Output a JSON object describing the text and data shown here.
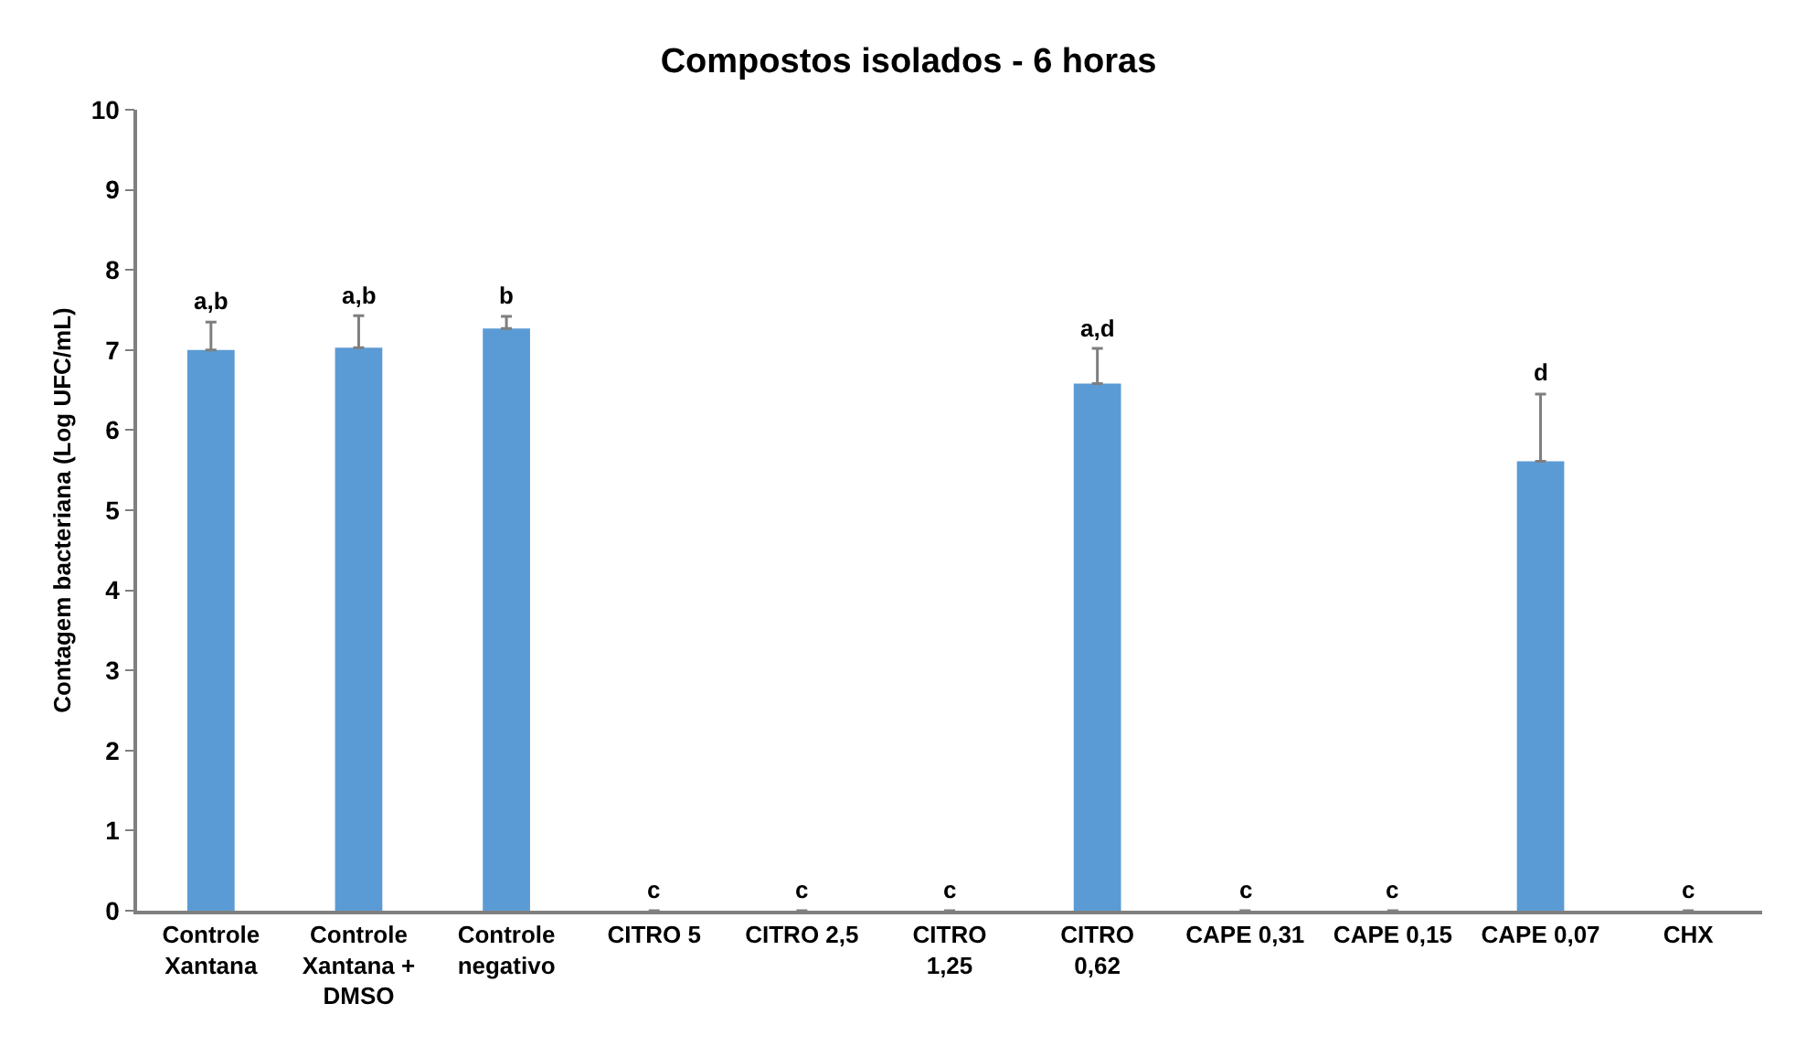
{
  "chart_data": {
    "type": "bar",
    "title": "Compostos isolados - 6 horas",
    "ylabel": "Contagem bacteriana (Log UFC/mL)",
    "categories": [
      "Controle Xantana",
      "Controle Xantana + DMSO",
      "Controle negativo",
      "CITRO 5",
      "CITRO 2,5",
      "CITRO 1,25",
      "CITRO 0,62",
      "CAPE 0,31",
      "CAPE 0,15",
      "CAPE 0,07",
      "CHX"
    ],
    "values": [
      7.0,
      7.03,
      7.27,
      0,
      0,
      0,
      6.58,
      0,
      0,
      5.61,
      0
    ],
    "errors": [
      [
        7.0,
        7.35
      ],
      [
        7.03,
        7.43
      ],
      [
        7.27,
        7.42
      ],
      null,
      null,
      null,
      [
        6.58,
        7.02
      ],
      null,
      null,
      [
        5.61,
        6.45
      ],
      null
    ],
    "value_labels": [
      "a,b",
      "a,b",
      "b",
      "c",
      "c",
      "c",
      "a,d",
      "c",
      "c",
      "d",
      "c"
    ],
    "color": "#5b9bd5",
    "ylim": [
      0,
      10
    ],
    "yticks": [
      0,
      1,
      2,
      3,
      4,
      5,
      6,
      7,
      8,
      9,
      10
    ]
  }
}
